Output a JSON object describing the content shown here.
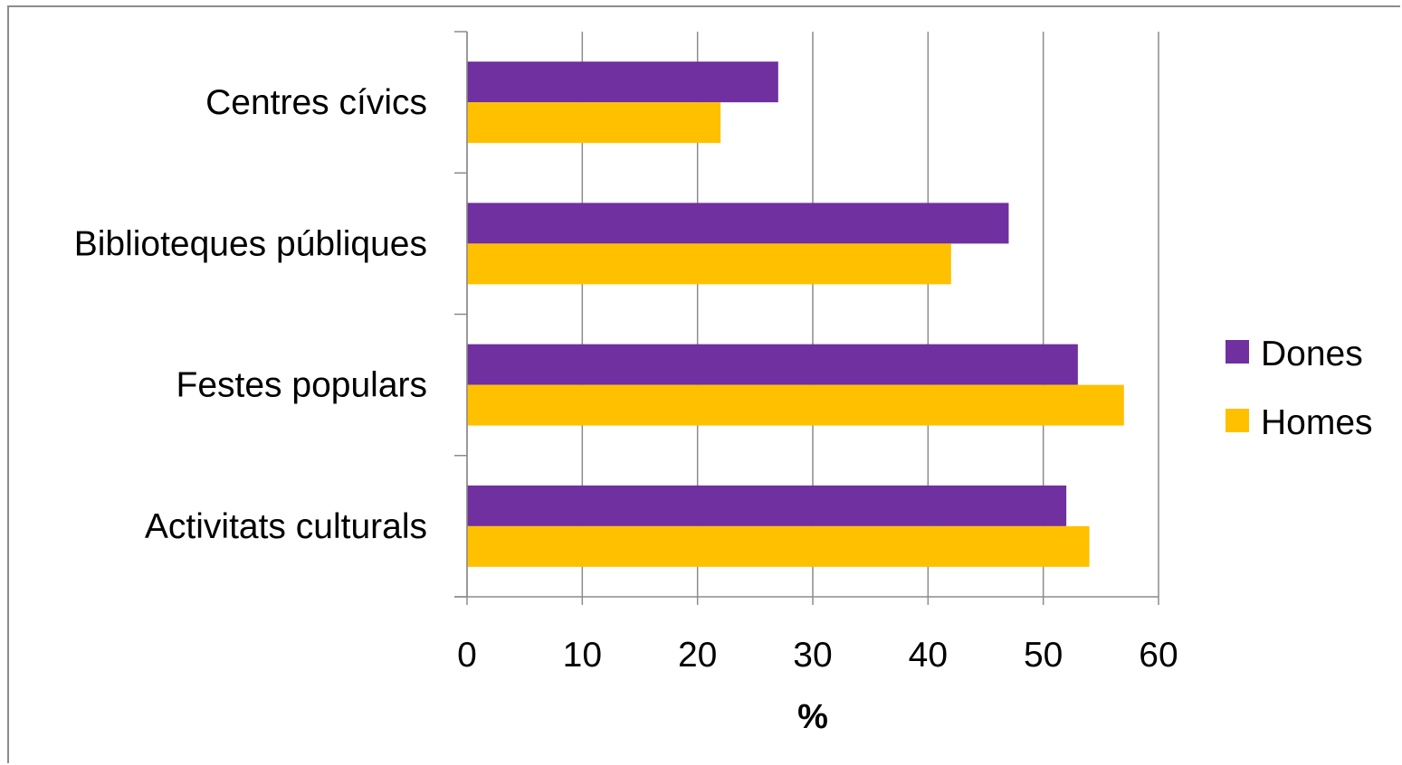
{
  "chart_data": {
    "type": "bar",
    "orientation": "horizontal",
    "categories": [
      "Centres cívics",
      "Biblioteques públiques",
      "Festes populars",
      "Activitats culturals"
    ],
    "series": [
      {
        "name": "Dones",
        "color": "#7030a0",
        "values": [
          27,
          47,
          53,
          52
        ]
      },
      {
        "name": "Homes",
        "color": "#ffc000",
        "values": [
          22,
          42,
          57,
          54
        ]
      }
    ],
    "xlabel": "%",
    "ylabel": "",
    "xlim": [
      0,
      60
    ],
    "xticks": [
      "0",
      "10",
      "20",
      "30",
      "40",
      "50",
      "60"
    ],
    "grid": "vertical",
    "legend_position": "right"
  }
}
